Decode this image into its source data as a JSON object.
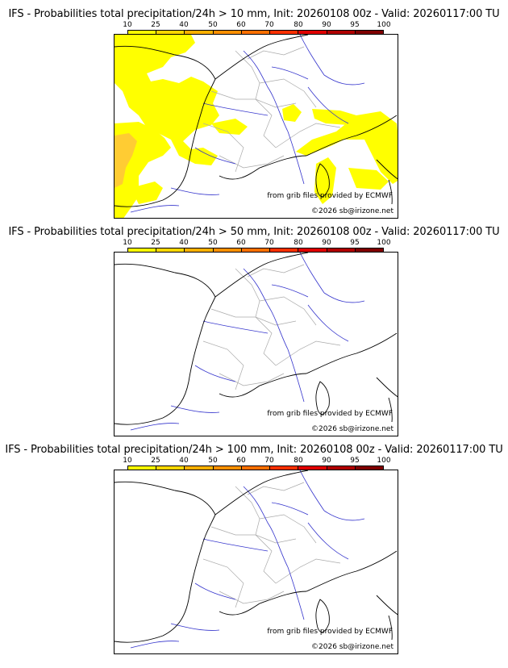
{
  "panels": [
    {
      "title": "IFS - Probabilities total precipitation/24h > 10 mm, Init: 20260108 00z - Valid: 20260117:00 TU",
      "threshold_mm": 10,
      "has_probability_area": true
    },
    {
      "title": "IFS - Probabilities total precipitation/24h > 50 mm, Init: 20260108 00z - Valid: 20260117:00 TU",
      "threshold_mm": 50,
      "has_probability_area": false
    },
    {
      "title": "IFS - Probabilities total precipitation/24h > 100 mm, Init: 20260108 00z - Valid: 20260117:00 TU",
      "threshold_mm": 100,
      "has_probability_area": false
    }
  ],
  "scale": {
    "labels": [
      "10",
      "25",
      "40",
      "50",
      "60",
      "70",
      "80",
      "90",
      "95",
      "100"
    ],
    "colors": [
      "#ffff00",
      "#ffd700",
      "#ffb000",
      "#ff9000",
      "#ff7000",
      "#ff3000",
      "#e00000",
      "#b00000",
      "#800000",
      "#500000"
    ]
  },
  "credit_text": "from grib files provided by ECMWF",
  "copyright_text": "©2026 sb@irizone.net",
  "map_colors": {
    "coast": "#000000",
    "rivers": "#3333cc",
    "borders": "#aaaaaa",
    "precip_yellow": "#ffff00",
    "precip_orange": "#ffcc33"
  }
}
